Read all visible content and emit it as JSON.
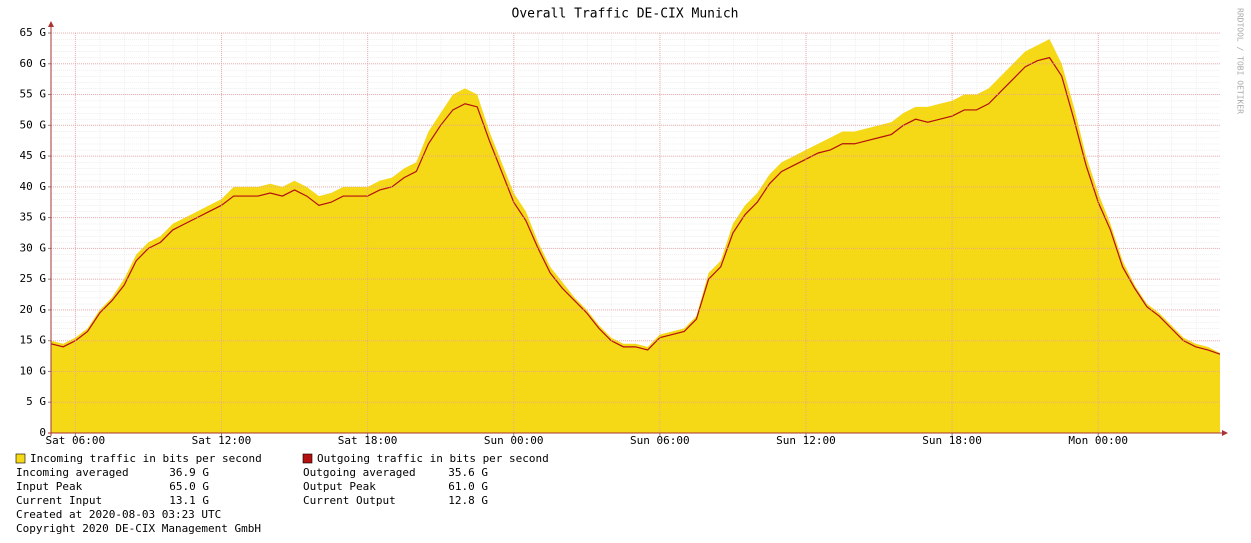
{
  "chart_data": {
    "type": "area",
    "title": "Overall Traffic DE-CIX Munich",
    "watermark": "RRDTOOL / TOBI OETIKER",
    "categories": [
      null,
      null,
      "Sat 06:00",
      null,
      null,
      null,
      null,
      null,
      null,
      null,
      null,
      null,
      null,
      null,
      "Sat 12:00",
      null,
      null,
      null,
      null,
      null,
      null,
      null,
      null,
      null,
      null,
      null,
      "Sat 18:00",
      null,
      null,
      null,
      null,
      null,
      null,
      null,
      null,
      null,
      null,
      null,
      "Sun 00:00",
      null,
      null,
      null,
      null,
      null,
      null,
      null,
      null,
      null,
      null,
      null,
      "Sun 06:00",
      null,
      null,
      null,
      null,
      null,
      null,
      null,
      null,
      null,
      null,
      null,
      "Sun 12:00",
      null,
      null,
      null,
      null,
      null,
      null,
      null,
      null,
      null,
      null,
      null,
      "Sun 18:00",
      null,
      null,
      null,
      null,
      null,
      null,
      null,
      null,
      null,
      null,
      null,
      "Mon 00:00",
      null,
      null,
      null,
      null,
      null,
      null,
      null,
      null,
      null,
      null
    ],
    "series": [
      {
        "name": "Incoming traffic in bits per second",
        "color": "#f5d816",
        "style": "area",
        "values": [
          15,
          14.5,
          15.5,
          17,
          20,
          22,
          25,
          29,
          31,
          32,
          34,
          35,
          36,
          37,
          38,
          40,
          40,
          40,
          40.5,
          40,
          41,
          40,
          38.5,
          39,
          40,
          40,
          40,
          41,
          41.5,
          43,
          44,
          49,
          52,
          55,
          56,
          55,
          49,
          44,
          39,
          36,
          31,
          27,
          24.5,
          22,
          20,
          17.5,
          15.5,
          14.5,
          14.5,
          14,
          16,
          16.5,
          17,
          19,
          26,
          28,
          34,
          37,
          39,
          42,
          44,
          45,
          46,
          47,
          48,
          49,
          49,
          49.5,
          50,
          50.5,
          52,
          53,
          53,
          53.5,
          54,
          55,
          55,
          56,
          58,
          60,
          62,
          63,
          64,
          60,
          53,
          45,
          39,
          34,
          28,
          24,
          21,
          19.5,
          17.5,
          15.5,
          14.5,
          14,
          13
        ]
      },
      {
        "name": "Outgoing traffic in bits per second",
        "color": "#b3100f",
        "style": "line",
        "values": [
          14.5,
          14,
          15,
          16.5,
          19.5,
          21.5,
          24,
          28,
          30,
          31,
          33,
          34,
          35,
          36,
          37,
          38.5,
          38.5,
          38.5,
          39,
          38.5,
          39.5,
          38.5,
          37,
          37.5,
          38.5,
          38.5,
          38.5,
          39.5,
          40,
          41.5,
          42.5,
          47,
          50,
          52.5,
          53.5,
          53,
          47.5,
          42.5,
          37.5,
          34.5,
          30,
          26,
          23.5,
          21.5,
          19.5,
          17,
          15,
          14,
          14,
          13.5,
          15.5,
          16,
          16.5,
          18.5,
          25,
          27,
          32.5,
          35.5,
          37.5,
          40.5,
          42.5,
          43.5,
          44.5,
          45.5,
          46,
          47,
          47,
          47.5,
          48,
          48.5,
          50,
          51,
          50.5,
          51,
          51.5,
          52.5,
          52.5,
          53.5,
          55.5,
          57.5,
          59.5,
          60.5,
          61,
          58,
          51,
          43.5,
          37.5,
          33,
          27,
          23.5,
          20.5,
          19,
          17,
          15,
          14,
          13.5,
          12.8
        ]
      }
    ],
    "ylim": [
      0,
      65
    ],
    "yticks": [
      0,
      {
        "value": 5,
        "label": "5 G"
      },
      {
        "value": 10,
        "label": "10 G"
      },
      {
        "value": 15,
        "label": "15 G"
      },
      {
        "value": 20,
        "label": "20 G"
      },
      {
        "value": 25,
        "label": "25 G"
      },
      {
        "value": 30,
        "label": "30 G"
      },
      {
        "value": 35,
        "label": "35 G"
      },
      {
        "value": 40,
        "label": "40 G"
      },
      {
        "value": 45,
        "label": "45 G"
      },
      {
        "value": 50,
        "label": "50 G"
      },
      {
        "value": 55,
        "label": "55 G"
      },
      {
        "value": 60,
        "label": "60 G"
      },
      {
        "value": 65,
        "label": "65 G"
      }
    ],
    "grid": true,
    "stats": [
      [
        {
          "label": "Incoming averaged",
          "value": "36.9 G"
        },
        {
          "label": "Outgoing averaged",
          "value": "35.6 G"
        }
      ],
      [
        {
          "label": "Input Peak",
          "value": "65.0 G"
        },
        {
          "label": "Output Peak",
          "value": "61.0 G"
        }
      ],
      [
        {
          "label": "Current Input",
          "value": "13.1 G"
        },
        {
          "label": "Current Output",
          "value": "12.8 G"
        }
      ]
    ],
    "created": "Created at 2020-08-03 03:23 UTC",
    "copyright": "Copyright 2020 DE-CIX Management GmbH"
  }
}
